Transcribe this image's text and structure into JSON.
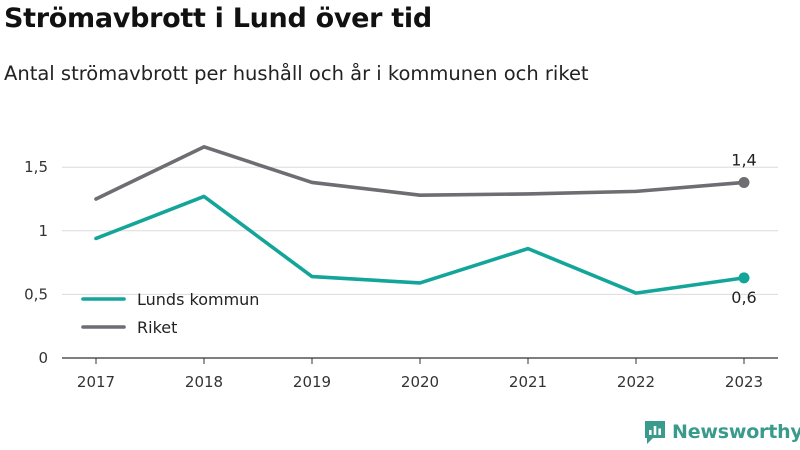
{
  "title": "Strömavbrott i Lund över tid",
  "subtitle": "Antal strömavbrott per hushåll och år i kommunen och riket",
  "brand": {
    "name": "Newsworthy",
    "icon": "newsworthy-logo-icon",
    "color": "#3a9a8b"
  },
  "chart_data": {
    "type": "line",
    "title": "Strömavbrott i Lund över tid",
    "subtitle": "Antal strömavbrott per hushåll och år i kommunen och riket",
    "xlabel": "",
    "ylabel": "",
    "x": [
      "2017",
      "2018",
      "2019",
      "2020",
      "2021",
      "2022",
      "2023"
    ],
    "ylim": [
      0,
      1.75
    ],
    "yticks": [
      0,
      0.5,
      1,
      1.5
    ],
    "ytick_labels": [
      "0",
      "0,5",
      "1",
      "1,5"
    ],
    "grid": true,
    "legend_position": "bottom-left",
    "series": [
      {
        "name": "Lunds kommun",
        "color": "#14a59a",
        "values": [
          0.94,
          1.27,
          0.64,
          0.59,
          0.86,
          0.51,
          0.63
        ],
        "end_label": "0,6",
        "end_label_position": "below"
      },
      {
        "name": "Riket",
        "color": "#6d6d72",
        "values": [
          1.25,
          1.66,
          1.38,
          1.28,
          1.29,
          1.31,
          1.38
        ],
        "end_label": "1,4",
        "end_label_position": "above"
      }
    ]
  }
}
